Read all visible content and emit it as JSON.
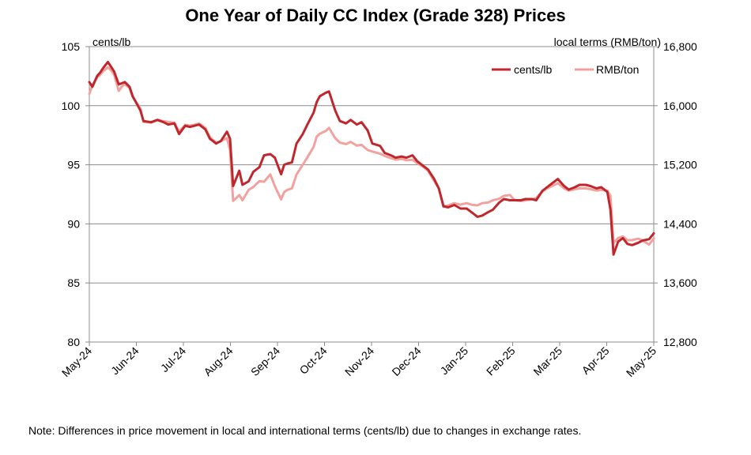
{
  "chart_data": {
    "type": "line",
    "title": "One Year of Daily CC Index (Grade 328) Prices",
    "ylabel_left": "cents/lb",
    "ylabel_right": "local terms (RMB/ton)",
    "ylim_left": [
      80,
      105
    ],
    "ylim_right": [
      12800,
      16800
    ],
    "yticks_left": [
      "80",
      "85",
      "90",
      "95",
      "100",
      "105"
    ],
    "yticks_right": [
      "12,800",
      "13,600",
      "14,400",
      "15,200",
      "16,000",
      "16,800"
    ],
    "x_range": [
      "2024-05-01",
      "2025-05-01"
    ],
    "categories": [
      "May-24",
      "Jun-24",
      "Jul-24",
      "Aug-24",
      "Sep-24",
      "Oct-24",
      "Nov-24",
      "Dec-24",
      "Jan-25",
      "Feb-25",
      "Mar-25",
      "Apr-25",
      "May-25"
    ],
    "grid": "horizontal",
    "legend_position": "top-right",
    "series": [
      {
        "name": "cents/lb",
        "axis": "left",
        "color": "#c0272d",
        "points": [
          [
            "2024-05-01",
            102.0
          ],
          [
            "2024-05-03",
            101.6
          ],
          [
            "2024-05-06",
            102.5
          ],
          [
            "2024-05-08",
            102.8
          ],
          [
            "2024-05-10",
            103.2
          ],
          [
            "2024-05-13",
            103.7
          ],
          [
            "2024-05-15",
            103.3
          ],
          [
            "2024-05-17",
            102.9
          ],
          [
            "2024-05-20",
            101.8
          ],
          [
            "2024-05-22",
            101.9
          ],
          [
            "2024-05-24",
            102.0
          ],
          [
            "2024-05-27",
            101.6
          ],
          [
            "2024-05-29",
            100.8
          ],
          [
            "2024-06-03",
            99.6
          ],
          [
            "2024-06-05",
            98.7
          ],
          [
            "2024-06-10",
            98.6
          ],
          [
            "2024-06-14",
            98.8
          ],
          [
            "2024-06-18",
            98.6
          ],
          [
            "2024-06-21",
            98.4
          ],
          [
            "2024-06-25",
            98.5
          ],
          [
            "2024-06-28",
            97.6
          ],
          [
            "2024-07-02",
            98.3
          ],
          [
            "2024-07-05",
            98.2
          ],
          [
            "2024-07-08",
            98.3
          ],
          [
            "2024-07-11",
            98.4
          ],
          [
            "2024-07-15",
            98.0
          ],
          [
            "2024-07-18",
            97.2
          ],
          [
            "2024-07-22",
            96.8
          ],
          [
            "2024-07-25",
            97.0
          ],
          [
            "2024-07-29",
            97.8
          ],
          [
            "2024-07-31",
            97.2
          ],
          [
            "2024-08-02",
            93.2
          ],
          [
            "2024-08-06",
            94.5
          ],
          [
            "2024-08-08",
            93.3
          ],
          [
            "2024-08-12",
            93.6
          ],
          [
            "2024-08-15",
            94.4
          ],
          [
            "2024-08-19",
            94.8
          ],
          [
            "2024-08-22",
            95.8
          ],
          [
            "2024-08-26",
            95.9
          ],
          [
            "2024-08-29",
            95.6
          ],
          [
            "2024-09-02",
            94.2
          ],
          [
            "2024-09-04",
            95.0
          ],
          [
            "2024-09-06",
            95.1
          ],
          [
            "2024-09-09",
            95.2
          ],
          [
            "2024-09-12",
            96.8
          ],
          [
            "2024-09-16",
            97.6
          ],
          [
            "2024-09-19",
            98.4
          ],
          [
            "2024-09-23",
            99.4
          ],
          [
            "2024-09-25",
            100.3
          ],
          [
            "2024-09-27",
            100.8
          ],
          [
            "2024-10-01",
            101.1
          ],
          [
            "2024-10-03",
            101.2
          ],
          [
            "2024-10-07",
            99.6
          ],
          [
            "2024-10-10",
            98.7
          ],
          [
            "2024-10-14",
            98.5
          ],
          [
            "2024-10-17",
            98.8
          ],
          [
            "2024-10-21",
            98.4
          ],
          [
            "2024-10-24",
            98.6
          ],
          [
            "2024-10-28",
            97.9
          ],
          [
            "2024-10-31",
            96.8
          ],
          [
            "2024-11-05",
            96.6
          ],
          [
            "2024-11-08",
            96.0
          ],
          [
            "2024-11-12",
            95.8
          ],
          [
            "2024-11-15",
            95.6
          ],
          [
            "2024-11-19",
            95.7
          ],
          [
            "2024-11-22",
            95.6
          ],
          [
            "2024-11-26",
            95.8
          ],
          [
            "2024-11-29",
            95.3
          ],
          [
            "2024-12-03",
            94.9
          ],
          [
            "2024-12-06",
            94.6
          ],
          [
            "2024-12-10",
            93.8
          ],
          [
            "2024-12-13",
            93.0
          ],
          [
            "2024-12-16",
            91.5
          ],
          [
            "2024-12-19",
            91.4
          ],
          [
            "2024-12-23",
            91.6
          ],
          [
            "2024-12-27",
            91.3
          ],
          [
            "2024-12-31",
            91.3
          ],
          [
            "2025-01-03",
            91.0
          ],
          [
            "2025-01-07",
            90.6
          ],
          [
            "2025-01-10",
            90.7
          ],
          [
            "2025-01-14",
            91.0
          ],
          [
            "2025-01-17",
            91.2
          ],
          [
            "2025-01-21",
            91.8
          ],
          [
            "2025-01-24",
            92.1
          ],
          [
            "2025-01-28",
            92.0
          ],
          [
            "2025-01-31",
            92.0
          ],
          [
            "2025-02-04",
            92.0
          ],
          [
            "2025-02-07",
            92.1
          ],
          [
            "2025-02-11",
            92.1
          ],
          [
            "2025-02-14",
            92.0
          ],
          [
            "2025-02-18",
            92.8
          ],
          [
            "2025-02-21",
            93.1
          ],
          [
            "2025-02-25",
            93.5
          ],
          [
            "2025-02-28",
            93.8
          ],
          [
            "2025-03-04",
            93.2
          ],
          [
            "2025-03-07",
            92.9
          ],
          [
            "2025-03-11",
            93.1
          ],
          [
            "2025-03-14",
            93.3
          ],
          [
            "2025-03-18",
            93.3
          ],
          [
            "2025-03-21",
            93.2
          ],
          [
            "2025-03-25",
            93.0
          ],
          [
            "2025-03-28",
            93.1
          ],
          [
            "2025-04-01",
            92.7
          ],
          [
            "2025-04-03",
            91.2
          ],
          [
            "2025-04-05",
            87.4
          ],
          [
            "2025-04-08",
            88.5
          ],
          [
            "2025-04-11",
            88.8
          ],
          [
            "2025-04-14",
            88.3
          ],
          [
            "2025-04-17",
            88.2
          ],
          [
            "2025-04-21",
            88.4
          ],
          [
            "2025-04-24",
            88.6
          ],
          [
            "2025-04-28",
            88.7
          ],
          [
            "2025-05-01",
            89.2
          ]
        ]
      },
      {
        "name": "RMB/ton",
        "axis": "right",
        "color": "#f2a29e",
        "points": [
          [
            "2024-05-01",
            16160
          ],
          [
            "2024-05-03",
            16280
          ],
          [
            "2024-05-06",
            16380
          ],
          [
            "2024-05-08",
            16420
          ],
          [
            "2024-05-10",
            16470
          ],
          [
            "2024-05-13",
            16520
          ],
          [
            "2024-05-15",
            16480
          ],
          [
            "2024-05-17",
            16420
          ],
          [
            "2024-05-20",
            16200
          ],
          [
            "2024-05-22",
            16260
          ],
          [
            "2024-05-24",
            16290
          ],
          [
            "2024-05-27",
            16240
          ],
          [
            "2024-05-29",
            16120
          ],
          [
            "2024-06-03",
            15960
          ],
          [
            "2024-06-05",
            15780
          ],
          [
            "2024-06-10",
            15770
          ],
          [
            "2024-06-14",
            15810
          ],
          [
            "2024-06-18",
            15790
          ],
          [
            "2024-06-21",
            15780
          ],
          [
            "2024-06-25",
            15770
          ],
          [
            "2024-06-28",
            15650
          ],
          [
            "2024-07-02",
            15740
          ],
          [
            "2024-07-05",
            15730
          ],
          [
            "2024-07-08",
            15740
          ],
          [
            "2024-07-11",
            15760
          ],
          [
            "2024-07-15",
            15700
          ],
          [
            "2024-07-18",
            15570
          ],
          [
            "2024-07-22",
            15500
          ],
          [
            "2024-07-25",
            15520
          ],
          [
            "2024-07-29",
            15560
          ],
          [
            "2024-07-31",
            15400
          ],
          [
            "2024-08-02",
            14710
          ],
          [
            "2024-08-06",
            14790
          ],
          [
            "2024-08-08",
            14720
          ],
          [
            "2024-08-12",
            14860
          ],
          [
            "2024-08-15",
            14900
          ],
          [
            "2024-08-19",
            14980
          ],
          [
            "2024-08-22",
            14970
          ],
          [
            "2024-08-26",
            15070
          ],
          [
            "2024-08-29",
            14910
          ],
          [
            "2024-09-02",
            14730
          ],
          [
            "2024-09-04",
            14830
          ],
          [
            "2024-09-06",
            14860
          ],
          [
            "2024-09-09",
            14880
          ],
          [
            "2024-09-12",
            15070
          ],
          [
            "2024-09-16",
            15200
          ],
          [
            "2024-09-19",
            15300
          ],
          [
            "2024-09-23",
            15440
          ],
          [
            "2024-09-25",
            15580
          ],
          [
            "2024-09-27",
            15620
          ],
          [
            "2024-10-01",
            15660
          ],
          [
            "2024-10-03",
            15700
          ],
          [
            "2024-10-07",
            15560
          ],
          [
            "2024-10-10",
            15500
          ],
          [
            "2024-10-14",
            15480
          ],
          [
            "2024-10-17",
            15510
          ],
          [
            "2024-10-21",
            15460
          ],
          [
            "2024-10-24",
            15470
          ],
          [
            "2024-10-28",
            15400
          ],
          [
            "2024-10-31",
            15380
          ],
          [
            "2024-11-05",
            15350
          ],
          [
            "2024-11-08",
            15320
          ],
          [
            "2024-11-12",
            15290
          ],
          [
            "2024-11-15",
            15270
          ],
          [
            "2024-11-19",
            15280
          ],
          [
            "2024-11-22",
            15260
          ],
          [
            "2024-11-26",
            15270
          ],
          [
            "2024-11-29",
            15220
          ],
          [
            "2024-12-03",
            15170
          ],
          [
            "2024-12-06",
            15120
          ],
          [
            "2024-12-10",
            14980
          ],
          [
            "2024-12-13",
            14880
          ],
          [
            "2024-12-16",
            14630
          ],
          [
            "2024-12-19",
            14650
          ],
          [
            "2024-12-23",
            14680
          ],
          [
            "2024-12-27",
            14660
          ],
          [
            "2024-12-31",
            14680
          ],
          [
            "2025-01-03",
            14660
          ],
          [
            "2025-01-07",
            14650
          ],
          [
            "2025-01-10",
            14680
          ],
          [
            "2025-01-14",
            14690
          ],
          [
            "2025-01-17",
            14720
          ],
          [
            "2025-01-21",
            14740
          ],
          [
            "2025-01-24",
            14780
          ],
          [
            "2025-01-28",
            14790
          ],
          [
            "2025-01-31",
            14720
          ],
          [
            "2025-02-04",
            14710
          ],
          [
            "2025-02-07",
            14720
          ],
          [
            "2025-02-11",
            14730
          ],
          [
            "2025-02-14",
            14750
          ],
          [
            "2025-02-18",
            14840
          ],
          [
            "2025-02-21",
            14880
          ],
          [
            "2025-02-25",
            14920
          ],
          [
            "2025-02-28",
            14950
          ],
          [
            "2025-03-04",
            14880
          ],
          [
            "2025-03-07",
            14850
          ],
          [
            "2025-03-11",
            14870
          ],
          [
            "2025-03-14",
            14880
          ],
          [
            "2025-03-18",
            14880
          ],
          [
            "2025-03-21",
            14870
          ],
          [
            "2025-03-25",
            14850
          ],
          [
            "2025-03-28",
            14860
          ],
          [
            "2025-04-01",
            14850
          ],
          [
            "2025-04-03",
            14780
          ],
          [
            "2025-04-05",
            14140
          ],
          [
            "2025-04-08",
            14210
          ],
          [
            "2025-04-11",
            14230
          ],
          [
            "2025-04-14",
            14180
          ],
          [
            "2025-04-17",
            14180
          ],
          [
            "2025-04-21",
            14200
          ],
          [
            "2025-04-24",
            14170
          ],
          [
            "2025-04-28",
            14120
          ],
          [
            "2025-05-01",
            14200
          ]
        ]
      }
    ]
  },
  "footnote": "Note: Differences in price movement in local and international terms (cents/lb) due to changes in exchange rates."
}
